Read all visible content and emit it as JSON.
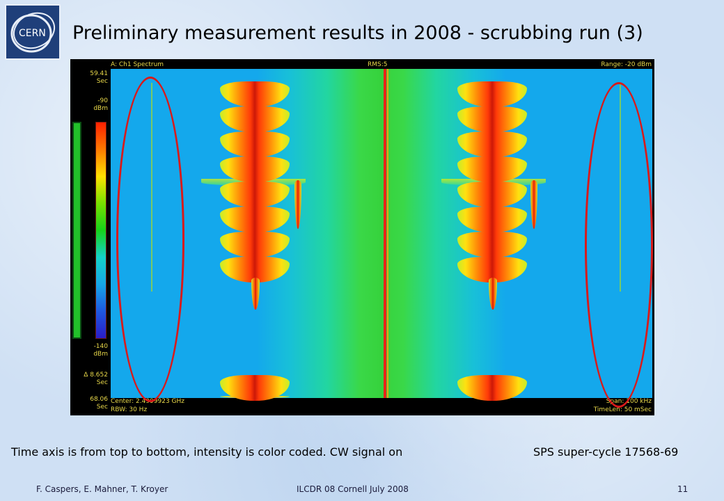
{
  "slide": {
    "title": "Preliminary measurement results in 2008 - scrubbing run (3)",
    "logo_text": "CERN",
    "caption_left": "Time axis is from top to bottom, intensity is color coded. CW signal on",
    "caption_right": "SPS super-cycle 17568-69",
    "footer_authors": "F. Caspers, E. Mahner, T. Kroyer",
    "footer_event": "ILCDR 08 Cornell July 2008",
    "page_number": "11"
  },
  "analyzer": {
    "header_left": "A: Ch1 Spectrum",
    "header_mid": "RMS:5",
    "header_right": "Range: -20 dBm",
    "footer_center": "Center: 2.4999923 GHz",
    "footer_rbw": "RBW: 30 Hz",
    "footer_span": "Span: 100 kHz",
    "footer_timelen": "TimeLen: 50 mSec",
    "side_labels": {
      "time_top": "59.41",
      "time_top_unit": "Sec",
      "scale_top": "-90",
      "scale_top_unit": "dBm",
      "scale_bottom": "-140",
      "scale_bottom_unit": "dBm",
      "delta": "Δ 8.652",
      "delta_unit": "Sec",
      "time_bottom": "68.06",
      "time_bottom_unit": "Sec"
    },
    "colors": {
      "background": "#14a9ec",
      "cw_line": "#e8241a",
      "highlight_ellipse": "#d81a1a"
    }
  }
}
